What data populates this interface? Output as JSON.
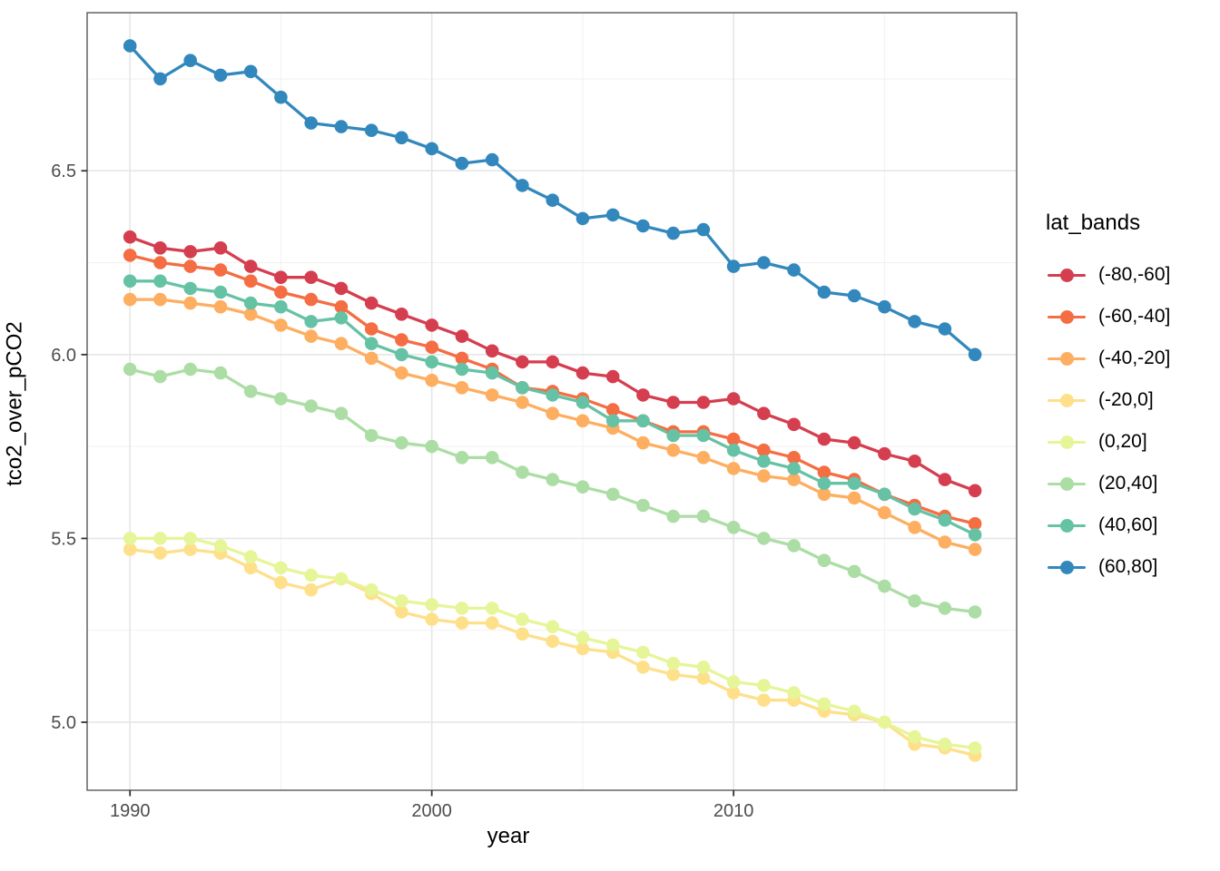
{
  "chart_data": {
    "type": "line",
    "title": "",
    "xlabel": "year",
    "ylabel": "tco2_over_pCO2",
    "legend_title": "lat_bands",
    "legend_position": "right",
    "grid": true,
    "xlim": [
      1988.58,
      2019.38
    ],
    "ylim": [
      4.815,
      6.93
    ],
    "x_ticks": [
      1990,
      2000,
      2010
    ],
    "x_tick_labels": [
      "1990",
      "2000",
      "2010"
    ],
    "x_minor_gridlines": [
      1995,
      2005,
      2015
    ],
    "y_ticks": [
      5.0,
      5.5,
      6.0,
      6.5
    ],
    "y_tick_labels": [
      "5.0",
      "5.5",
      "6.0",
      "6.5"
    ],
    "y_minor_gridlines": [
      5.25,
      5.75,
      6.25,
      6.75
    ],
    "x": [
      1990,
      1991,
      1992,
      1993,
      1994,
      1995,
      1996,
      1997,
      1998,
      1999,
      2000,
      2001,
      2002,
      2003,
      2004,
      2005,
      2006,
      2007,
      2008,
      2009,
      2010,
      2011,
      2012,
      2013,
      2014,
      2015,
      2016,
      2017,
      2018
    ],
    "series": [
      {
        "name": "(-80,-60]",
        "color": "#d53e4f",
        "values": [
          6.32,
          6.29,
          6.28,
          6.29,
          6.24,
          6.21,
          6.21,
          6.18,
          6.14,
          6.11,
          6.08,
          6.05,
          6.01,
          5.98,
          5.98,
          5.95,
          5.94,
          5.89,
          5.87,
          5.87,
          5.88,
          5.84,
          5.81,
          5.77,
          5.76,
          5.73,
          5.71,
          5.66,
          5.63
        ]
      },
      {
        "name": "(-60,-40]",
        "color": "#f46d43",
        "values": [
          6.27,
          6.25,
          6.24,
          6.23,
          6.2,
          6.17,
          6.15,
          6.13,
          6.07,
          6.04,
          6.02,
          5.99,
          5.96,
          5.91,
          5.9,
          5.88,
          5.85,
          5.82,
          5.79,
          5.79,
          5.77,
          5.74,
          5.72,
          5.68,
          5.66,
          5.62,
          5.59,
          5.56,
          5.54
        ]
      },
      {
        "name": "(-40,-20]",
        "color": "#fdae61",
        "values": [
          6.15,
          6.15,
          6.14,
          6.13,
          6.11,
          6.08,
          6.05,
          6.03,
          5.99,
          5.95,
          5.93,
          5.91,
          5.89,
          5.87,
          5.84,
          5.82,
          5.8,
          5.76,
          5.74,
          5.72,
          5.69,
          5.67,
          5.66,
          5.62,
          5.61,
          5.57,
          5.53,
          5.49,
          5.47
        ]
      },
      {
        "name": "(-20,0]",
        "color": "#fee08b",
        "values": [
          5.47,
          5.46,
          5.47,
          5.46,
          5.42,
          5.38,
          5.36,
          5.39,
          5.35,
          5.3,
          5.28,
          5.27,
          5.27,
          5.24,
          5.22,
          5.2,
          5.19,
          5.15,
          5.13,
          5.12,
          5.08,
          5.06,
          5.06,
          5.03,
          5.02,
          5.0,
          4.94,
          4.93,
          4.91
        ]
      },
      {
        "name": "(0,20]",
        "color": "#e6f598",
        "values": [
          5.5,
          5.5,
          5.5,
          5.48,
          5.45,
          5.42,
          5.4,
          5.39,
          5.36,
          5.33,
          5.32,
          5.31,
          5.31,
          5.28,
          5.26,
          5.23,
          5.21,
          5.19,
          5.16,
          5.15,
          5.11,
          5.1,
          5.08,
          5.05,
          5.03,
          5.0,
          4.96,
          4.94,
          4.93
        ]
      },
      {
        "name": "(20,40]",
        "color": "#abdda4",
        "values": [
          5.96,
          5.94,
          5.96,
          5.95,
          5.9,
          5.88,
          5.86,
          5.84,
          5.78,
          5.76,
          5.75,
          5.72,
          5.72,
          5.68,
          5.66,
          5.64,
          5.62,
          5.59,
          5.56,
          5.56,
          5.53,
          5.5,
          5.48,
          5.44,
          5.41,
          5.37,
          5.33,
          5.31,
          5.3
        ]
      },
      {
        "name": "(40,60]",
        "color": "#66c2a5",
        "values": [
          6.2,
          6.2,
          6.18,
          6.17,
          6.14,
          6.13,
          6.09,
          6.1,
          6.03,
          6.0,
          5.98,
          5.96,
          5.95,
          5.91,
          5.89,
          5.87,
          5.82,
          5.82,
          5.78,
          5.78,
          5.74,
          5.71,
          5.69,
          5.65,
          5.65,
          5.62,
          5.58,
          5.55,
          5.51
        ]
      },
      {
        "name": "(60,80]",
        "color": "#3288bd",
        "values": [
          6.84,
          6.75,
          6.8,
          6.76,
          6.77,
          6.7,
          6.63,
          6.62,
          6.61,
          6.59,
          6.56,
          6.52,
          6.53,
          6.46,
          6.42,
          6.37,
          6.38,
          6.35,
          6.33,
          6.34,
          6.24,
          6.25,
          6.23,
          6.17,
          6.16,
          6.13,
          6.09,
          6.07,
          6.0
        ]
      }
    ]
  },
  "style": {
    "panel_border_color": "#595959",
    "tick_color": "#333333",
    "tick_label_color": "#4d4d4d",
    "grid_major_color": "#e6e6e6",
    "grid_minor_color": "#f2f2f2",
    "background_color": "#ffffff"
  }
}
